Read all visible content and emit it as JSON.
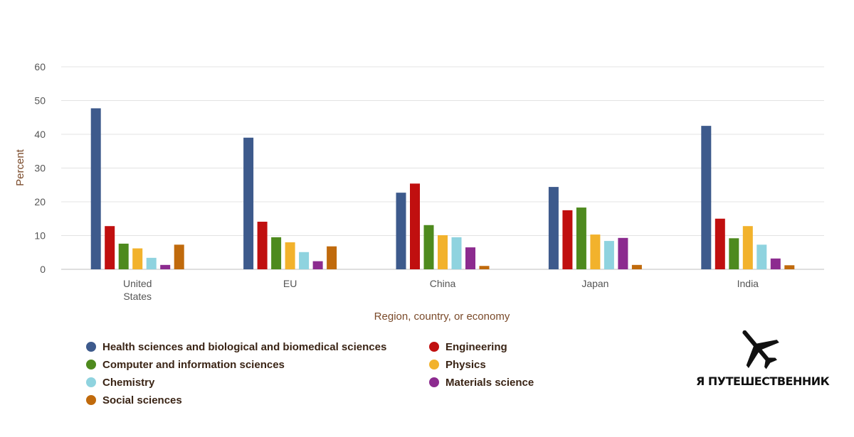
{
  "chart_data": {
    "type": "bar",
    "title": "",
    "xlabel": "Region, country, or economy",
    "ylabel": "Percent",
    "ylim": [
      0,
      60
    ],
    "yticks": [
      0,
      10,
      20,
      30,
      40,
      50,
      60
    ],
    "grid": true,
    "legend_position": "bottom",
    "categories": [
      [
        "United",
        "States"
      ],
      [
        "EU"
      ],
      [
        "China"
      ],
      [
        "Japan"
      ],
      [
        "India"
      ]
    ],
    "series": [
      {
        "name": "Health sciences and biological and biomedical sciences",
        "color": "#3d5a8c",
        "values": [
          47.7,
          39.0,
          22.7,
          24.4,
          42.5
        ]
      },
      {
        "name": "Engineering",
        "color": "#c00f0f",
        "values": [
          12.8,
          14.1,
          25.4,
          17.5,
          15.0
        ]
      },
      {
        "name": "Computer and information sciences",
        "color": "#4e8a1e",
        "values": [
          7.6,
          9.5,
          13.1,
          18.3,
          9.2
        ]
      },
      {
        "name": "Physics",
        "color": "#f2b22c",
        "values": [
          6.2,
          8.0,
          10.1,
          10.3,
          12.8
        ]
      },
      {
        "name": "Chemistry",
        "color": "#8fd3df",
        "values": [
          3.4,
          5.1,
          9.5,
          8.4,
          7.3
        ]
      },
      {
        "name": "Materials science",
        "color": "#8c2b8f",
        "values": [
          1.3,
          2.4,
          6.5,
          9.3,
          3.2
        ]
      },
      {
        "name": "Social sciences",
        "color": "#c06a0c",
        "values": [
          7.3,
          6.8,
          1.0,
          1.3,
          1.2
        ]
      }
    ]
  },
  "logo": {
    "text": "Я ПУТЕШЕСТВЕННИК",
    "icon": "airplane-icon"
  }
}
